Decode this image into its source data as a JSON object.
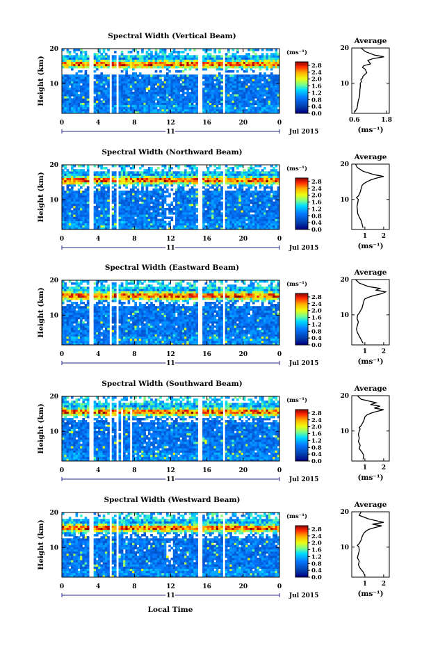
{
  "figure": {
    "xaxis_label": "Local Time",
    "date_label": "Jul 2015",
    "day_label": "11",
    "ylabel": "Height (km)",
    "colorbar_unit": "(ms⁻¹)",
    "avg_title": "Average",
    "avg_unit": "(ms⁻¹)"
  },
  "chart_data": [
    {
      "type": "heatmap",
      "title": "Spectral Width (Vertical Beam)",
      "x_ticks": [
        "0",
        "4",
        "8",
        "12",
        "16",
        "20",
        "0"
      ],
      "y_ticks": [
        "20",
        "10"
      ],
      "xlim": [
        0,
        24
      ],
      "ylim": [
        1.5,
        20
      ],
      "colorbar_ticks": [
        "2.8",
        "2.4",
        "2.0",
        "1.6",
        "1.2",
        "0.8",
        "0.4",
        "0.0"
      ],
      "clim": [
        0,
        3.0
      ],
      "data_gaps": [
        [
          3.1,
          3.5
        ],
        [
          5.2,
          5.5
        ],
        [
          5.9,
          6.2
        ],
        [
          15.0,
          15.4
        ],
        [
          17.8,
          18.1
        ]
      ]
    },
    {
      "type": "line",
      "title": "Average",
      "x_ticks": [
        "0.6",
        "1.8"
      ],
      "y_ticks": [
        "20",
        "10"
      ],
      "xlim": [
        0.5,
        1.9
      ],
      "ylim": [
        1.5,
        20
      ],
      "xlabel": "(ms⁻¹)",
      "x": [
        0.62,
        0.7,
        0.72,
        0.74,
        0.78,
        0.8,
        0.8,
        0.82,
        0.82,
        0.86,
        0.84,
        0.9,
        0.92,
        1.06,
        1.0,
        0.9,
        0.95,
        1.2,
        1.15,
        1.1,
        1.3,
        1.7,
        1.35,
        1.0,
        0.85
      ],
      "y": [
        2,
        3,
        4,
        5,
        6,
        7,
        8,
        9,
        10,
        10.5,
        11,
        11.5,
        12,
        13,
        14,
        14.5,
        15,
        15.5,
        16,
        16.5,
        17,
        17.5,
        18,
        19,
        20
      ]
    },
    {
      "type": "heatmap",
      "title": "Spectral Width (Northward Beam)",
      "x_ticks": [
        "0",
        "4",
        "8",
        "12",
        "16",
        "20",
        "0"
      ],
      "y_ticks": [
        "20",
        "10"
      ],
      "xlim": [
        0,
        24
      ],
      "ylim": [
        1.5,
        20
      ],
      "colorbar_ticks": [
        "2.8",
        "2.4",
        "2.0",
        "1.6",
        "1.2",
        "0.8",
        "0.4",
        "0.0"
      ],
      "clim": [
        0,
        3.0
      ],
      "data_gaps": [
        [
          3.1,
          3.5
        ],
        [
          5.2,
          5.5
        ],
        [
          5.9,
          6.2
        ],
        [
          15.0,
          15.4
        ],
        [
          17.8,
          18.1
        ]
      ]
    },
    {
      "type": "line",
      "title": "Average",
      "x_ticks": [
        "1",
        "2"
      ],
      "y_ticks": [
        "20",
        "10"
      ],
      "xlim": [
        0.3,
        2.3
      ],
      "ylim": [
        1.5,
        20
      ],
      "xlabel": "(ms⁻¹)",
      "x": [
        0.9,
        0.85,
        0.8,
        0.7,
        0.62,
        0.6,
        0.58,
        0.62,
        0.65,
        0.55,
        0.65,
        0.7,
        0.75,
        0.8,
        0.85,
        0.95,
        1.1,
        1.3,
        1.6,
        2.0,
        1.5,
        1.2,
        0.9,
        0.6,
        0.5
      ],
      "y": [
        2,
        3,
        4,
        5,
        6,
        7,
        8,
        9,
        10,
        10.5,
        11,
        11.5,
        12,
        13,
        14,
        14.5,
        15,
        15.5,
        16,
        16.5,
        17,
        17.5,
        18,
        19,
        20
      ]
    },
    {
      "type": "heatmap",
      "title": "Spectral Width (Eastward Beam)",
      "x_ticks": [
        "0",
        "4",
        "8",
        "12",
        "16",
        "20",
        "0"
      ],
      "y_ticks": [
        "20",
        "10"
      ],
      "xlim": [
        0,
        24
      ],
      "ylim": [
        1.5,
        20
      ],
      "colorbar_ticks": [
        "2.8",
        "2.4",
        "2.0",
        "1.6",
        "1.2",
        "0.8",
        "0.4",
        "0.0"
      ],
      "clim": [
        0,
        3.0
      ],
      "data_gaps": [
        [
          3.1,
          3.5
        ],
        [
          5.2,
          5.5
        ],
        [
          5.9,
          6.2
        ],
        [
          15.0,
          15.4
        ],
        [
          17.8,
          18.1
        ]
      ]
    },
    {
      "type": "line",
      "title": "Average",
      "x_ticks": [
        "1",
        "2"
      ],
      "y_ticks": [
        "20",
        "10"
      ],
      "xlim": [
        0.3,
        2.3
      ],
      "ylim": [
        1.5,
        20
      ],
      "xlabel": "(ms⁻¹)",
      "x": [
        0.9,
        0.8,
        0.7,
        0.6,
        0.55,
        0.6,
        0.65,
        0.58,
        0.62,
        0.7,
        0.75,
        0.8,
        0.85,
        0.9,
        0.95,
        1.0,
        1.2,
        1.5,
        1.9,
        2.1,
        1.6,
        1.8,
        1.2,
        0.7,
        0.5
      ],
      "y": [
        2,
        3,
        4,
        5,
        6,
        7,
        8,
        9,
        10,
        10.5,
        11,
        11.5,
        12,
        13,
        14,
        14.5,
        15,
        15.5,
        16,
        16.5,
        17,
        17.5,
        18,
        19,
        20
      ]
    },
    {
      "type": "heatmap",
      "title": "Spectral Width (Southward Beam)",
      "x_ticks": [
        "0",
        "4",
        "8",
        "12",
        "16",
        "20",
        "0"
      ],
      "y_ticks": [
        "20",
        "10"
      ],
      "xlim": [
        0,
        24
      ],
      "ylim": [
        1.5,
        20
      ],
      "colorbar_ticks": [
        "2.8",
        "2.4",
        "2.0",
        "1.6",
        "1.2",
        "0.8",
        "0.4",
        "0.0"
      ],
      "clim": [
        0,
        3.0
      ],
      "data_gaps": [
        [
          3.1,
          3.5
        ],
        [
          5.2,
          5.5
        ],
        [
          5.9,
          6.2
        ],
        [
          15.0,
          15.4
        ],
        [
          17.8,
          18.1
        ]
      ]
    },
    {
      "type": "line",
      "title": "Average",
      "x_ticks": [
        "1",
        "2"
      ],
      "y_ticks": [
        "20",
        "10"
      ],
      "xlim": [
        0.3,
        2.3
      ],
      "ylim": [
        1.5,
        20
      ],
      "xlabel": "(ms⁻¹)",
      "x": [
        0.9,
        0.95,
        0.85,
        0.7,
        0.75,
        0.65,
        0.7,
        0.65,
        0.7,
        0.75,
        0.7,
        0.8,
        0.85,
        0.95,
        1.0,
        1.1,
        1.3,
        1.6,
        2.0,
        1.5,
        1.8,
        1.3,
        1.6,
        0.8,
        0.6
      ],
      "y": [
        2,
        3,
        4,
        5,
        6,
        7,
        8,
        9,
        10,
        10.5,
        11,
        11.5,
        12,
        13,
        14,
        14.5,
        15,
        15.5,
        16,
        16.5,
        17,
        17.5,
        18,
        19,
        20
      ]
    },
    {
      "type": "heatmap",
      "title": "Spectral Width (Westward Beam)",
      "x_ticks": [
        "0",
        "4",
        "8",
        "12",
        "16",
        "20",
        "0"
      ],
      "y_ticks": [
        "20",
        "10"
      ],
      "xlim": [
        0,
        24
      ],
      "ylim": [
        1.5,
        20
      ],
      "colorbar_ticks": [
        "2.8",
        "2.4",
        "2.0",
        "1.6",
        "1.2",
        "0.8",
        "0.4",
        "0.0"
      ],
      "clim": [
        0,
        3.0
      ],
      "data_gaps": [
        [
          3.1,
          3.5
        ],
        [
          5.2,
          5.5
        ],
        [
          5.9,
          6.2
        ],
        [
          15.0,
          15.4
        ],
        [
          17.8,
          18.1
        ]
      ]
    },
    {
      "type": "line",
      "title": "Average",
      "x_ticks": [
        "1",
        "2"
      ],
      "y_ticks": [
        "20",
        "10"
      ],
      "xlim": [
        0.3,
        2.3
      ],
      "ylim": [
        1.5,
        20
      ],
      "xlabel": "(ms⁻¹)",
      "x": [
        1.0,
        0.9,
        0.75,
        0.65,
        0.7,
        0.6,
        0.65,
        0.7,
        0.68,
        0.6,
        0.7,
        0.75,
        0.8,
        0.85,
        0.95,
        1.05,
        1.2,
        1.5,
        1.9,
        1.4,
        2.0,
        1.6,
        1.2,
        0.7,
        0.8
      ],
      "y": [
        2,
        3,
        4,
        5,
        6,
        7,
        8,
        9,
        10,
        10.5,
        11,
        11.5,
        12,
        13,
        14,
        14.5,
        15,
        15.5,
        16,
        16.5,
        17,
        17.5,
        18,
        19,
        20
      ]
    }
  ]
}
